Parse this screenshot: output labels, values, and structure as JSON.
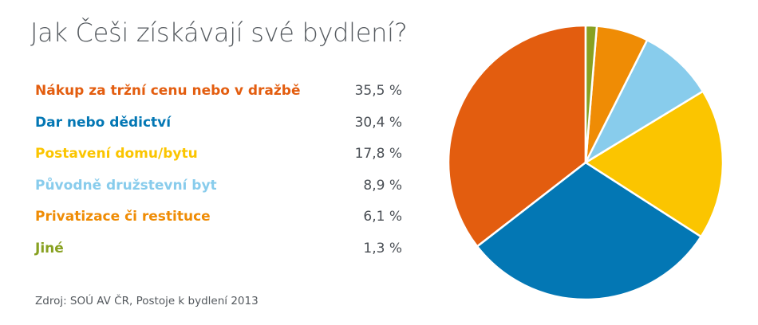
{
  "title": "Jak Češi získávají své bydlení?",
  "source": "Zdroj: SOÚ AV ČR, Postoje k bydlení 2013",
  "chart_data": {
    "type": "pie",
    "title": "Jak Češi získávají své bydlení?",
    "slices": [
      {
        "label": "Nákup za tržní cenu nebo v dražbě",
        "value": 35.5,
        "value_label": "35,5 %",
        "color": "#e35d0f"
      },
      {
        "label": "Dar nebo dědictví",
        "value": 30.4,
        "value_label": "30,4 %",
        "color": "#0377b4"
      },
      {
        "label": "Postavení domu/bytu",
        "value": 17.8,
        "value_label": "17,8 %",
        "color": "#fbc500"
      },
      {
        "label": "Původně družstevní byt",
        "value": 8.9,
        "value_label": "8,9 %",
        "color": "#88ccec"
      },
      {
        "label": "Privatizace či restituce",
        "value": 6.1,
        "value_label": "6,1 %",
        "color": "#ef8c05"
      },
      {
        "label": "Jiné",
        "value": 1.3,
        "value_label": "1,3 %",
        "color": "#88a121"
      }
    ],
    "legend_position": "left",
    "start_angle_deg": 0,
    "direction": "clockwise_from_top_in_reverse_order"
  }
}
